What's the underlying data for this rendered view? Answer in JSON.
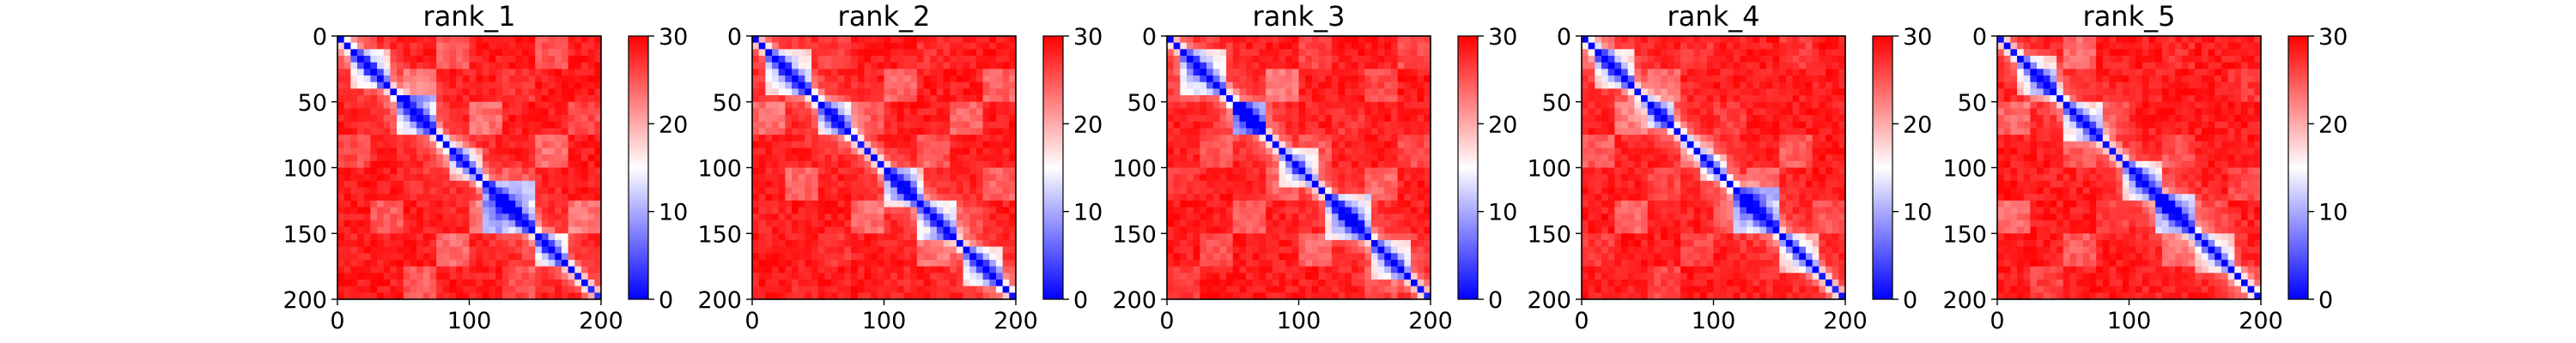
{
  "figure": {
    "colormap": {
      "name": "bwr",
      "colors": {
        "low": "#0000ff",
        "mid": "#ffffff",
        "high": "#ff0000"
      }
    }
  },
  "chart_data": [
    {
      "type": "heatmap",
      "title": "rank_1",
      "xlabel": "",
      "ylabel": "",
      "xticks": [
        "0",
        "100",
        "200"
      ],
      "yticks": [
        "0",
        "50",
        "100",
        "150",
        "200"
      ],
      "colorbar_ticks": [
        "0",
        "10",
        "20",
        "30"
      ],
      "xlim": [
        0,
        200
      ],
      "ylim": [
        0,
        200
      ],
      "vlim": [
        0,
        30
      ],
      "grid": false,
      "feature_domains": [
        {
          "center": 25,
          "extent": [
            8,
            40
          ],
          "strength": 0.75
        },
        {
          "center": 60,
          "extent": [
            45,
            75
          ],
          "strength": 0.9
        },
        {
          "center": 95,
          "extent": [
            85,
            110
          ],
          "strength": 0.55
        },
        {
          "center": 130,
          "extent": [
            110,
            150
          ],
          "strength": 1.0
        },
        {
          "center": 160,
          "extent": [
            150,
            175
          ],
          "strength": 0.7
        }
      ]
    },
    {
      "type": "heatmap",
      "title": "rank_2",
      "xlabel": "",
      "ylabel": "",
      "xticks": [
        "0",
        "100",
        "200"
      ],
      "yticks": [
        "0",
        "50",
        "100",
        "150",
        "200"
      ],
      "colorbar_ticks": [
        "0",
        "10",
        "20",
        "30"
      ],
      "xlim": [
        0,
        200
      ],
      "ylim": [
        0,
        200
      ],
      "vlim": [
        0,
        30
      ],
      "grid": false,
      "feature_domains": [
        {
          "center": 25,
          "extent": [
            8,
            45
          ],
          "strength": 0.8
        },
        {
          "center": 62,
          "extent": [
            50,
            75
          ],
          "strength": 0.85
        },
        {
          "center": 115,
          "extent": [
            100,
            130
          ],
          "strength": 0.7
        },
        {
          "center": 140,
          "extent": [
            125,
            155
          ],
          "strength": 0.75
        },
        {
          "center": 175,
          "extent": [
            160,
            190
          ],
          "strength": 0.8
        }
      ]
    },
    {
      "type": "heatmap",
      "title": "rank_3",
      "xlabel": "",
      "ylabel": "",
      "xticks": [
        "0",
        "100",
        "200"
      ],
      "yticks": [
        "0",
        "50",
        "100",
        "150",
        "200"
      ],
      "colorbar_ticks": [
        "0",
        "10",
        "20",
        "30"
      ],
      "xlim": [
        0,
        200
      ],
      "ylim": [
        0,
        200
      ],
      "vlim": [
        0,
        30
      ],
      "grid": false,
      "feature_domains": [
        {
          "center": 25,
          "extent": [
            10,
            45
          ],
          "strength": 0.8
        },
        {
          "center": 62,
          "extent": [
            50,
            75
          ],
          "strength": 0.95
        },
        {
          "center": 100,
          "extent": [
            85,
            115
          ],
          "strength": 0.55
        },
        {
          "center": 140,
          "extent": [
            120,
            155
          ],
          "strength": 0.85
        },
        {
          "center": 170,
          "extent": [
            155,
            185
          ],
          "strength": 0.7
        }
      ]
    },
    {
      "type": "heatmap",
      "title": "rank_4",
      "xlabel": "",
      "ylabel": "",
      "xticks": [
        "0",
        "100",
        "200"
      ],
      "yticks": [
        "0",
        "50",
        "100",
        "150",
        "200"
      ],
      "colorbar_ticks": [
        "0",
        "10",
        "20",
        "30"
      ],
      "xlim": [
        0,
        200
      ],
      "ylim": [
        0,
        200
      ],
      "vlim": [
        0,
        30
      ],
      "grid": false,
      "feature_domains": [
        {
          "center": 25,
          "extent": [
            10,
            40
          ],
          "strength": 0.75
        },
        {
          "center": 60,
          "extent": [
            48,
            72
          ],
          "strength": 0.8
        },
        {
          "center": 100,
          "extent": [
            90,
            112
          ],
          "strength": 0.5
        },
        {
          "center": 132,
          "extent": [
            115,
            148
          ],
          "strength": 1.0
        },
        {
          "center": 165,
          "extent": [
            150,
            180
          ],
          "strength": 0.6
        }
      ]
    },
    {
      "type": "heatmap",
      "title": "rank_5",
      "xlabel": "",
      "ylabel": "",
      "xticks": [
        "0",
        "100",
        "200"
      ],
      "yticks": [
        "0",
        "50",
        "100",
        "150",
        "200"
      ],
      "colorbar_ticks": [
        "0",
        "10",
        "20",
        "30"
      ],
      "xlim": [
        0,
        200
      ],
      "ylim": [
        0,
        200
      ],
      "vlim": [
        0,
        30
      ],
      "grid": false,
      "feature_domains": [
        {
          "center": 30,
          "extent": [
            15,
            45
          ],
          "strength": 0.7
        },
        {
          "center": 65,
          "extent": [
            52,
            78
          ],
          "strength": 0.75
        },
        {
          "center": 110,
          "extent": [
            95,
            125
          ],
          "strength": 0.7
        },
        {
          "center": 132,
          "extent": [
            118,
            148
          ],
          "strength": 1.0
        },
        {
          "center": 165,
          "extent": [
            150,
            180
          ],
          "strength": 0.6
        }
      ]
    }
  ]
}
